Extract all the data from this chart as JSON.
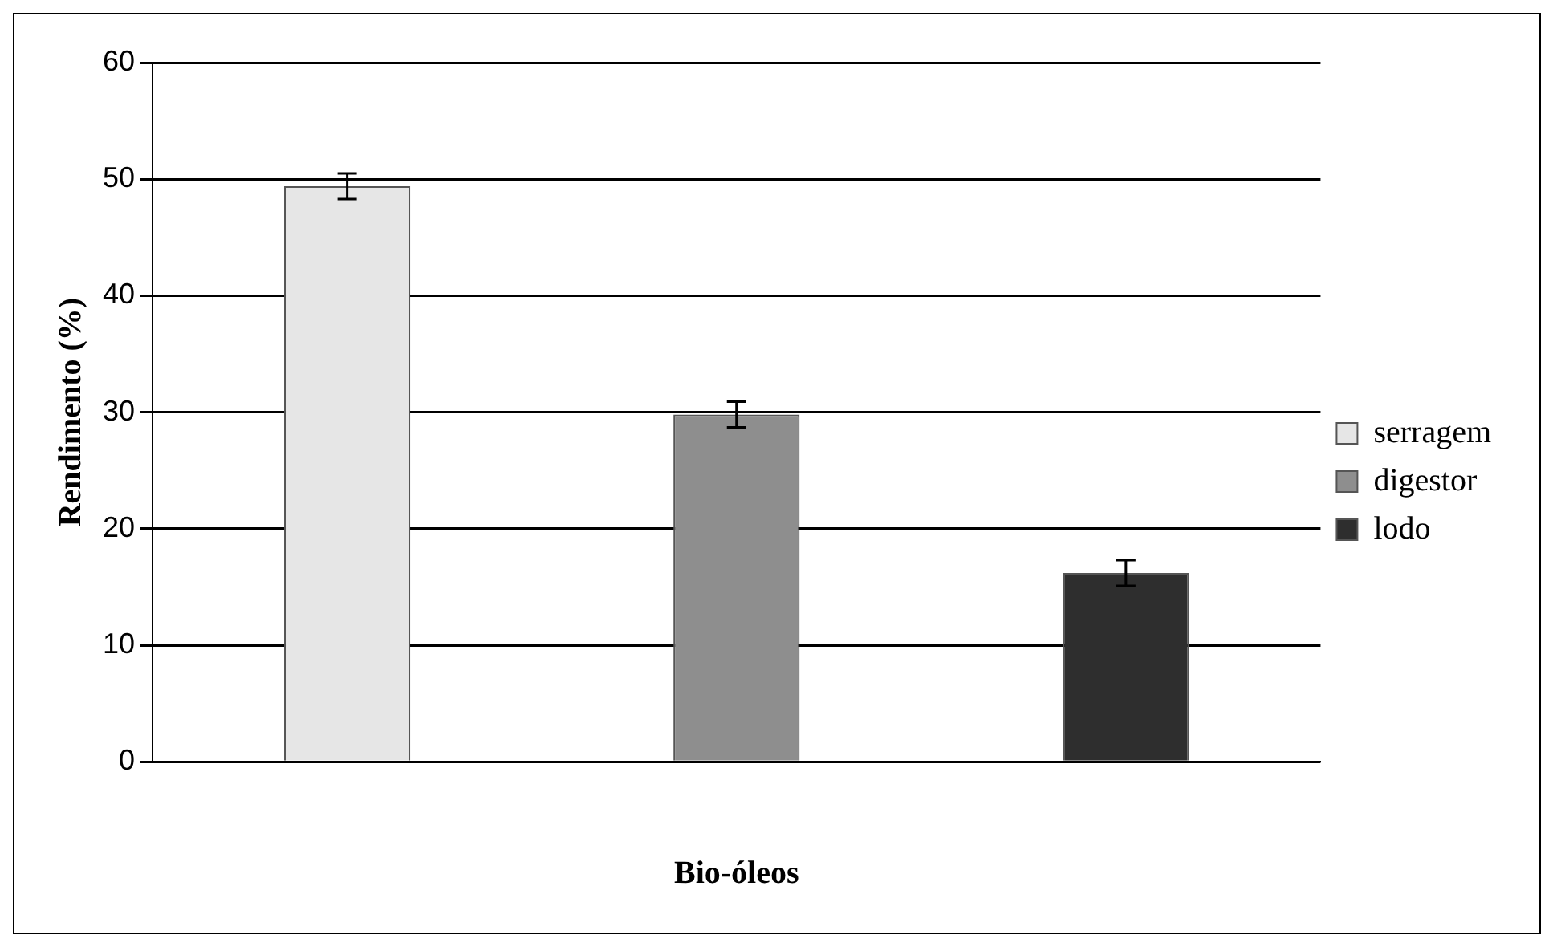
{
  "chart_data": {
    "type": "bar",
    "xlabel": "Bio-óleos",
    "ylabel": "Rendimento (%)",
    "categories": [
      null,
      null,
      null
    ],
    "series": [
      {
        "name": "serragem",
        "color": "#e6e6e6",
        "values": [
          49.4,
          null,
          null
        ],
        "errors": [
          1.1,
          null,
          null
        ]
      },
      {
        "name": "digestor",
        "color": "#8e8e8e",
        "values": [
          null,
          29.8,
          null
        ],
        "errors": [
          null,
          1.1,
          null
        ]
      },
      {
        "name": "lodo",
        "color": "#2e2e2e",
        "values": [
          null,
          null,
          16.2
        ],
        "errors": [
          null,
          null,
          1.1
        ]
      }
    ],
    "ylim": [
      0,
      60
    ],
    "yticks": [
      0,
      10,
      20,
      30,
      40,
      50,
      60
    ],
    "grid": "y",
    "legend": "right"
  }
}
